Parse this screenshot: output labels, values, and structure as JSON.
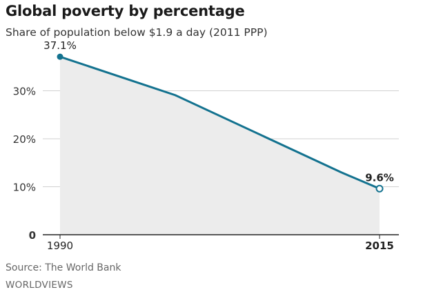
{
  "header": {
    "title": "Global poverty by percentage",
    "subtitle": "Share of population below $1.9 a day (2011 PPP)"
  },
  "footer": {
    "source": "Source: The World Bank",
    "brand": "WORLDVIEWS"
  },
  "chart_data": {
    "type": "area",
    "title": "Global poverty by percentage",
    "subtitle": "Share of population below $1.9 a day (2011 PPP)",
    "xlabel": "",
    "ylabel": "",
    "xlim": [
      1990,
      2015
    ],
    "ylim": [
      0,
      40
    ],
    "yticks": [
      {
        "value": 0,
        "label": "0"
      },
      {
        "value": 10,
        "label": "10%"
      },
      {
        "value": 20,
        "label": "20%"
      },
      {
        "value": 30,
        "label": "30%"
      }
    ],
    "xticks": [
      {
        "value": 1990,
        "label": "1990"
      },
      {
        "value": 2015,
        "label": "2015"
      }
    ],
    "grid": true,
    "series": [
      {
        "x": [
          1990,
          1999,
          2012,
          2015
        ],
        "values": [
          37.1,
          29.1,
          13.0,
          9.6
        ],
        "color": "#13728f"
      }
    ],
    "annotations": [
      {
        "x": 1990,
        "y": 37.1,
        "text": "37.1%"
      },
      {
        "x": 2015,
        "y": 9.6,
        "text": "9.6%"
      }
    ],
    "fill_color": "#ececec",
    "grid_color": "#d0d0d0"
  }
}
